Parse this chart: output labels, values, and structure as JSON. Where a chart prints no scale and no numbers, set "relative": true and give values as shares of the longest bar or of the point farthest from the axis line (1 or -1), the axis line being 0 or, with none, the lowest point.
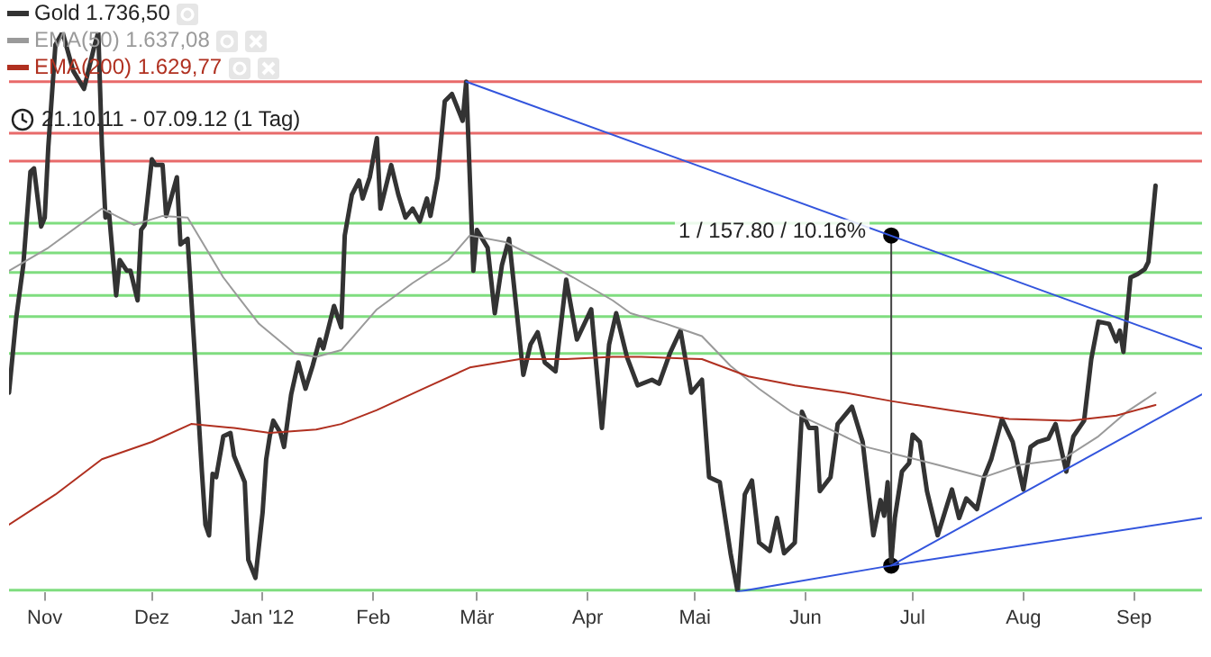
{
  "chart_data": {
    "type": "line",
    "relative": true,
    "legend": "top left",
    "grid": false,
    "marker": "none",
    "annotations": [
      "21.10.11 - 07.09.12 (1 Tag)",
      {
        "text": "1 / 157.80 / 10.16%",
        "x": "2012-06-25",
        "y": 0.637
      }
    ],
    "xlim": [
      "2011-10-22",
      "2012-09-20"
    ],
    "xticks": [
      {
        "value": "2011-11-01",
        "label": "Nov"
      },
      {
        "value": "2011-12-01",
        "label": "Dez"
      },
      {
        "value": "2012-01-01",
        "label": "Jan '12"
      },
      {
        "value": "2012-02-01",
        "label": "Feb"
      },
      {
        "value": "2012-03-01",
        "label": "Mär"
      },
      {
        "value": "2012-04-01",
        "label": "Apr"
      },
      {
        "value": "2012-05-01",
        "label": "Mai"
      },
      {
        "value": "2012-06-01",
        "label": "Jun"
      },
      {
        "value": "2012-07-01",
        "label": "Jul"
      },
      {
        "value": "2012-08-01",
        "label": "Aug"
      },
      {
        "value": "2012-09-01",
        "label": "Sep"
      }
    ],
    "ref_lines": [
      {
        "axis": "y",
        "value": 0.912,
        "color": "#e86a6a"
      },
      {
        "axis": "y",
        "value": 0.82,
        "color": "#e86a6a"
      },
      {
        "axis": "y",
        "value": 0.77,
        "color": "#e86a6a"
      },
      {
        "axis": "y",
        "value": 0.659,
        "color": "#7fdd7f"
      },
      {
        "axis": "y",
        "value": 0.606,
        "color": "#7fdd7f"
      },
      {
        "axis": "y",
        "value": 0.571,
        "color": "#7fdd7f"
      },
      {
        "axis": "y",
        "value": 0.53,
        "color": "#7fdd7f"
      },
      {
        "axis": "y",
        "value": 0.492,
        "color": "#7fdd7f"
      },
      {
        "axis": "y",
        "value": 0.426,
        "color": "#7fdd7f"
      },
      {
        "axis": "y",
        "value": 0.003,
        "color": "#7fdd7f"
      }
    ],
    "series": [
      {
        "name": "EMA(200) 1.629,77",
        "type": "line",
        "color": "#b03020",
        "x": [
          "2011-10-22",
          "2011-11-04",
          "2011-11-17",
          "2011-12-01",
          "2011-12-12",
          "2011-12-24",
          "2012-01-03",
          "2012-01-16",
          "2012-01-23",
          "2012-02-02",
          "2012-02-15",
          "2012-02-28",
          "2012-03-13",
          "2012-03-26",
          "2012-04-08",
          "2012-04-16",
          "2012-05-03",
          "2012-05-16",
          "2012-05-29",
          "2012-06-12",
          "2012-06-25",
          "2012-07-11",
          "2012-07-28",
          "2012-08-14",
          "2012-08-27",
          "2012-09-07"
        ],
        "values": [
          0.12,
          0.174,
          0.237,
          0.268,
          0.3,
          0.293,
          0.284,
          0.29,
          0.3,
          0.325,
          0.363,
          0.401,
          0.416,
          0.416,
          0.42,
          0.42,
          0.416,
          0.385,
          0.369,
          0.356,
          0.341,
          0.325,
          0.309,
          0.306,
          0.315,
          0.334
        ]
      },
      {
        "name": "EMA(50) 1.637,08",
        "type": "line",
        "color": "#9a9a9a",
        "x": [
          "2011-10-22",
          "2011-11-02",
          "2011-11-17",
          "2011-11-26",
          "2011-12-04",
          "2011-12-11",
          "2011-12-21",
          "2011-12-31",
          "2012-01-10",
          "2012-01-16",
          "2012-01-23",
          "2012-02-02",
          "2012-02-12",
          "2012-02-22",
          "2012-02-28",
          "2012-03-09",
          "2012-03-19",
          "2012-03-28",
          "2012-04-08",
          "2012-04-13",
          "2012-04-23",
          "2012-05-03",
          "2012-05-11",
          "2012-05-19",
          "2012-05-28",
          "2012-06-08",
          "2012-06-18",
          "2012-06-28",
          "2012-07-08",
          "2012-07-21",
          "2012-07-31",
          "2012-08-12",
          "2012-08-22",
          "2012-08-30",
          "2012-09-07"
        ],
        "values": [
          0.574,
          0.615,
          0.685,
          0.656,
          0.672,
          0.669,
          0.562,
          0.479,
          0.426,
          0.42,
          0.432,
          0.505,
          0.552,
          0.593,
          0.637,
          0.625,
          0.593,
          0.562,
          0.521,
          0.498,
          0.479,
          0.457,
          0.404,
          0.363,
          0.322,
          0.29,
          0.259,
          0.243,
          0.227,
          0.205,
          0.227,
          0.237,
          0.278,
          0.322,
          0.356
        ]
      },
      {
        "type": "line",
        "color": "#3355dd",
        "x": [
          "2012-02-27",
          "2012-09-20"
        ],
        "values": [
          0.912,
          0.435
        ]
      },
      {
        "type": "line",
        "color": "#3355dd",
        "x": [
          "2012-05-13",
          "2012-06-25",
          "2012-09-20"
        ],
        "values": [
          0,
          0.047,
          0.132
        ]
      },
      {
        "type": "line",
        "color": "#3355dd",
        "x": [
          "2012-06-25",
          "2012-09-20"
        ],
        "values": [
          0.047,
          0.353
        ]
      },
      {
        "name": "Gold 1.736,50",
        "type": "line",
        "color": "#333333",
        "x": [
          "2011-10-22",
          "2011-10-24",
          "2011-10-26",
          "2011-10-28",
          "2011-10-29",
          "2011-10-31",
          "2011-11-01",
          "2011-11-02",
          "2011-11-04",
          "2011-11-06",
          "2011-11-09",
          "2011-11-12",
          "2011-11-15",
          "2011-11-16",
          "2011-11-17",
          "2011-11-18",
          "2011-11-19",
          "2011-11-21",
          "2011-11-22",
          "2011-11-24",
          "2011-11-25",
          "2011-11-27",
          "2011-11-28",
          "2011-11-29",
          "2011-12-01",
          "2011-12-02",
          "2011-12-04",
          "2011-12-05",
          "2011-12-08",
          "2011-12-09",
          "2011-12-11",
          "2011-12-13",
          "2011-12-15",
          "2011-12-16",
          "2011-12-17",
          "2011-12-18",
          "2011-12-19",
          "2011-12-21",
          "2011-12-23",
          "2011-12-24",
          "2011-12-27",
          "2011-12-28",
          "2011-12-30",
          "2012-01-01",
          "2012-01-02",
          "2012-01-03",
          "2012-01-04",
          "2012-01-06",
          "2012-01-07",
          "2012-01-09",
          "2012-01-11",
          "2012-01-13",
          "2012-01-15",
          "2012-01-17",
          "2012-01-18",
          "2012-01-21",
          "2012-01-23",
          "2012-01-24",
          "2012-01-26",
          "2012-01-28",
          "2012-01-29",
          "2012-01-31",
          "2012-02-02",
          "2012-02-03",
          "2012-02-06",
          "2012-02-08",
          "2012-02-10",
          "2012-02-12",
          "2012-02-14",
          "2012-02-16",
          "2012-02-17",
          "2012-02-19",
          "2012-02-21",
          "2012-02-23",
          "2012-02-26",
          "2012-02-27",
          "2012-02-29",
          "2012-03-01",
          "2012-03-04",
          "2012-03-06",
          "2012-03-08",
          "2012-03-10",
          "2012-03-14",
          "2012-03-16",
          "2012-03-18",
          "2012-03-20",
          "2012-03-23",
          "2012-03-26",
          "2012-03-29",
          "2012-04-02",
          "2012-04-05",
          "2012-04-07",
          "2012-04-09",
          "2012-04-12",
          "2012-04-15",
          "2012-04-19",
          "2012-04-21",
          "2012-04-24",
          "2012-04-27",
          "2012-04-30",
          "2012-05-03",
          "2012-05-05",
          "2012-05-08",
          "2012-05-11",
          "2012-05-13",
          "2012-05-15",
          "2012-05-17",
          "2012-05-19",
          "2012-05-22",
          "2012-05-24",
          "2012-05-26",
          "2012-05-29",
          "2012-05-31",
          "2012-06-02",
          "2012-06-04",
          "2012-06-05",
          "2012-06-08",
          "2012-06-10",
          "2012-06-14",
          "2012-06-17",
          "2012-06-20",
          "2012-06-22",
          "2012-06-23",
          "2012-06-24",
          "2012-06-25",
          "2012-06-26",
          "2012-06-28",
          "2012-06-30",
          "2012-07-01",
          "2012-07-03",
          "2012-07-05",
          "2012-07-08",
          "2012-07-10",
          "2012-07-12",
          "2012-07-14",
          "2012-07-16",
          "2012-07-19",
          "2012-07-21",
          "2012-07-23",
          "2012-07-26",
          "2012-07-29",
          "2012-08-01",
          "2012-08-03",
          "2012-08-05",
          "2012-08-08",
          "2012-08-10",
          "2012-08-13",
          "2012-08-15",
          "2012-08-18",
          "2012-08-20",
          "2012-08-22",
          "2012-08-25",
          "2012-08-27",
          "2012-08-28",
          "2012-08-29",
          "2012-08-31",
          "2012-09-02",
          "2012-09-04",
          "2012-09-05",
          "2012-09-07"
        ],
        "values": [
          0.356,
          0.489,
          0.584,
          0.751,
          0.757,
          0.653,
          0.669,
          0.795,
          0.978,
          1.0,
          0.931,
          0.899,
          0.978,
          1.0,
          0.798,
          0.669,
          0.678,
          0.53,
          0.593,
          0.574,
          0.574,
          0.521,
          0.647,
          0.656,
          0.773,
          0.763,
          0.763,
          0.672,
          0.741,
          0.621,
          0.631,
          0.426,
          0.215,
          0.12,
          0.101,
          0.211,
          0.205,
          0.278,
          0.284,
          0.243,
          0.196,
          0.057,
          0.025,
          0.142,
          0.237,
          0.278,
          0.306,
          0.284,
          0.259,
          0.353,
          0.41,
          0.363,
          0.404,
          0.451,
          0.435,
          0.511,
          0.473,
          0.637,
          0.71,
          0.735,
          0.703,
          0.741,
          0.811,
          0.685,
          0.763,
          0.71,
          0.669,
          0.685,
          0.662,
          0.703,
          0.672,
          0.741,
          0.877,
          0.89,
          0.842,
          0.912,
          0.574,
          0.647,
          0.615,
          0.498,
          0.584,
          0.631,
          0.388,
          0.442,
          0.464,
          0.41,
          0.394,
          0.558,
          0.451,
          0.505,
          0.293,
          0.442,
          0.498,
          0.42,
          0.369,
          0.379,
          0.372,
          0.426,
          0.467,
          0.356,
          0.379,
          0.205,
          0.196,
          0.069,
          0,
          0.174,
          0.199,
          0.088,
          0.073,
          0.132,
          0.069,
          0.088,
          0.322,
          0.293,
          0.293,
          0.18,
          0.205,
          0.3,
          0.331,
          0.268,
          0.101,
          0.164,
          0.136,
          0.196,
          0.054,
          0.132,
          0.215,
          0.23,
          0.281,
          0.268,
          0.18,
          0.101,
          0.142,
          0.183,
          0.132,
          0.167,
          0.148,
          0.205,
          0.237,
          0.309,
          0.268,
          0.183,
          0.259,
          0.268,
          0.274,
          0.3,
          0.215,
          0.278,
          0.306,
          0.416,
          0.483,
          0.479,
          0.448,
          0.467,
          0.429,
          0.562,
          0.568,
          0.577,
          0.59,
          0.726
        ]
      },
      {
        "type": "line",
        "color": "#444444",
        "marker": "circle",
        "x": [
          "2012-06-25",
          "2012-06-25"
        ],
        "values": [
          0.047,
          0.637
        ]
      }
    ]
  }
}
